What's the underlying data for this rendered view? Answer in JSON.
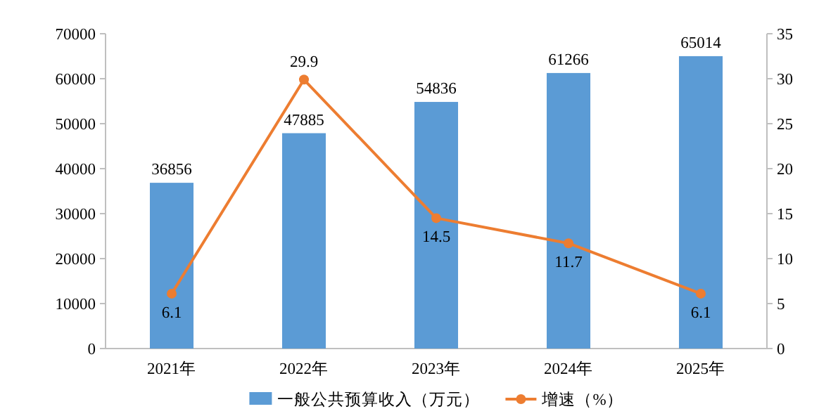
{
  "chart_data": {
    "type": "bar",
    "categories": [
      "2021年",
      "2022年",
      "2023年",
      "2024年",
      "2025年"
    ],
    "series": [
      {
        "name": "一般公共预算收入（万元）",
        "color": "#5b9bd5",
        "values": [
          36856,
          47885,
          54836,
          61266,
          65014
        ]
      },
      {
        "name": "增速（%）",
        "type": "line",
        "axis": "y2",
        "marker": "circle",
        "color": "#ed7d31",
        "values": [
          6.1,
          29.9,
          14.5,
          11.7,
          6.1
        ]
      }
    ],
    "ylim": [
      0,
      70000
    ],
    "yticks": [
      0,
      10000,
      20000,
      30000,
      40000,
      50000,
      60000,
      70000
    ],
    "y2lim": [
      0,
      35
    ],
    "y2ticks": [
      0,
      5,
      10,
      15,
      20,
      25,
      30,
      35
    ],
    "data_labels": true,
    "legend": "bottom"
  }
}
